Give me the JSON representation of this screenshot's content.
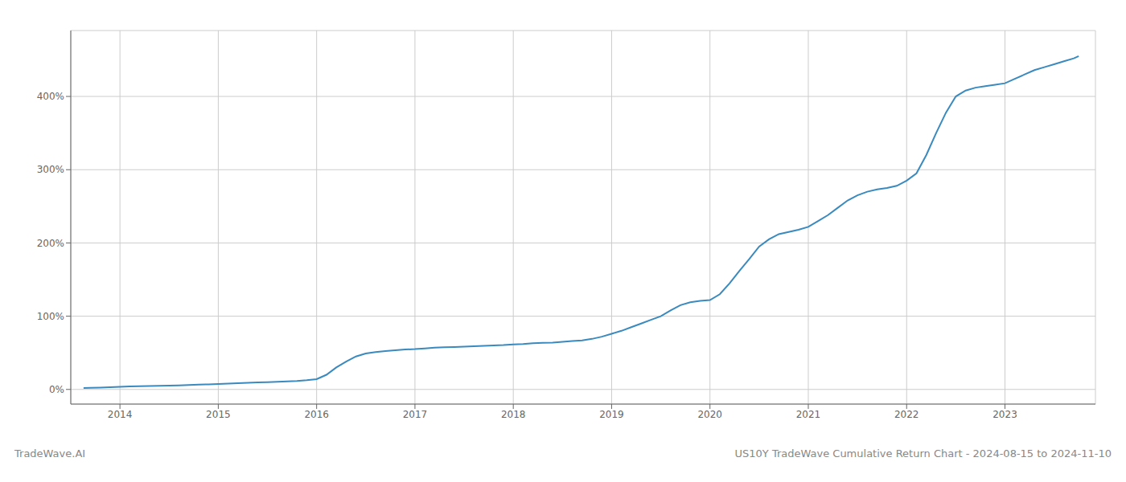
{
  "chart_data": {
    "type": "line",
    "title": "US10Y TradeWave Cumulative Return Chart - 2024-08-15 to 2024-11-10",
    "annotations": [
      "TradeWave.AI"
    ],
    "color": "#3a8abf",
    "grid": true,
    "x": [
      2013.63,
      2013.7,
      2013.8,
      2013.9,
      2014.0,
      2014.1,
      2014.2,
      2014.3,
      2014.4,
      2014.5,
      2014.6,
      2014.7,
      2014.8,
      2014.9,
      2015.0,
      2015.1,
      2015.2,
      2015.3,
      2015.4,
      2015.5,
      2015.6,
      2015.7,
      2015.8,
      2015.9,
      2016.0,
      2016.1,
      2016.2,
      2016.3,
      2016.4,
      2016.5,
      2016.6,
      2016.7,
      2016.8,
      2016.9,
      2017.0,
      2017.1,
      2017.2,
      2017.3,
      2017.4,
      2017.5,
      2017.6,
      2017.7,
      2017.8,
      2017.9,
      2018.0,
      2018.1,
      2018.2,
      2018.3,
      2018.4,
      2018.5,
      2018.6,
      2018.7,
      2018.8,
      2018.9,
      2019.0,
      2019.1,
      2019.2,
      2019.3,
      2019.4,
      2019.5,
      2019.6,
      2019.7,
      2019.8,
      2019.9,
      2020.0,
      2020.1,
      2020.2,
      2020.3,
      2020.4,
      2020.5,
      2020.6,
      2020.7,
      2020.8,
      2020.9,
      2021.0,
      2021.1,
      2021.2,
      2021.3,
      2021.4,
      2021.5,
      2021.6,
      2021.7,
      2021.8,
      2021.9,
      2022.0,
      2022.1,
      2022.2,
      2022.3,
      2022.4,
      2022.5,
      2022.6,
      2022.7,
      2022.8,
      2022.9,
      2023.0,
      2023.1,
      2023.2,
      2023.3,
      2023.4,
      2023.5,
      2023.6,
      2023.7,
      2023.75
    ],
    "values": [
      2,
      2.2,
      2.5,
      3.0,
      3.5,
      4.0,
      4.5,
      4.8,
      5.0,
      5.2,
      5.5,
      6.0,
      6.5,
      7.0,
      7.5,
      8.0,
      8.5,
      9.0,
      9.5,
      10.0,
      10.5,
      11.0,
      11.5,
      12.5,
      14.0,
      20.0,
      30.0,
      38.0,
      45.0,
      49.0,
      51.0,
      52.5,
      53.5,
      54.5,
      55.0,
      56.0,
      57.0,
      57.5,
      58.0,
      58.5,
      59.0,
      59.5,
      60.0,
      60.5,
      61.5,
      62.0,
      63.0,
      63.5,
      64.0,
      65.0,
      66.0,
      67.0,
      69.0,
      72.0,
      76.0,
      80.0,
      85.0,
      90.0,
      95.0,
      100.0,
      108.0,
      115.0,
      119.0,
      121.0,
      122.0,
      130.0,
      145.0,
      162.0,
      178.0,
      195.0,
      205.0,
      212.0,
      215.0,
      218.0,
      222.0,
      230.0,
      238.0,
      248.0,
      258.0,
      265.0,
      270.0,
      273.0,
      275.0,
      278.0,
      285.0,
      295.0,
      320.0,
      350.0,
      378.0,
      400.0,
      408.0,
      412.0,
      414.0,
      416.0,
      418.0,
      424.0,
      430.0,
      436.0,
      440.0,
      444.0,
      448.0,
      452.0,
      455.0
    ],
    "xlim": [
      2013.5,
      2023.92
    ],
    "xticks": [
      2014,
      2015,
      2016,
      2017,
      2018,
      2019,
      2020,
      2021,
      2022,
      2023
    ],
    "ylim": [
      -20,
      490
    ],
    "yticks": [
      {
        "value": 0,
        "label": "0%"
      },
      {
        "value": 100,
        "label": "100%"
      },
      {
        "value": 200,
        "label": "200%"
      },
      {
        "value": 300,
        "label": "300%"
      },
      {
        "value": 400,
        "label": "400%"
      }
    ]
  }
}
